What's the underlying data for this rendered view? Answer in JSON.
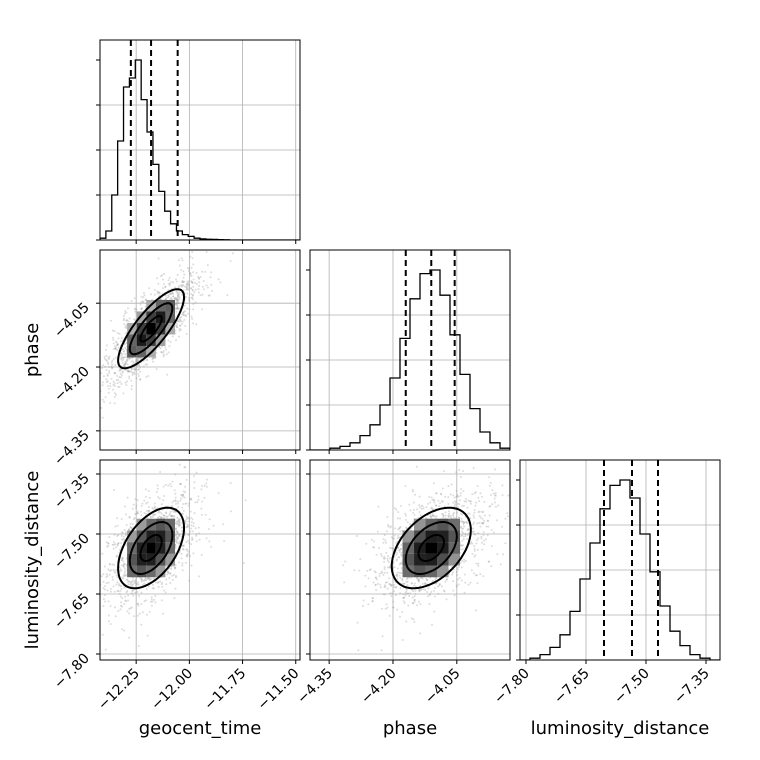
{
  "chart_data": {
    "type": "corner",
    "parameters": [
      {
        "name": "geocent_time",
        "label": "geocent_time",
        "range": [
          -12.42,
          -11.48
        ],
        "ticks": [
          -12.25,
          -12.0,
          -11.75,
          -11.5
        ],
        "tick_labels": [
          "−12.25",
          "−12.00",
          "−11.75",
          "−11.50"
        ],
        "quantiles": [
          -12.275,
          -12.18,
          -12.055
        ],
        "mean": -12.18,
        "sd": 0.1
      },
      {
        "name": "phase",
        "label": "phase",
        "range": [
          -4.395,
          -3.925
        ],
        "ticks": [
          -4.35,
          -4.2,
          -4.05
        ],
        "tick_labels": [
          "−4.35",
          "−4.20",
          "−4.05"
        ],
        "quantiles": [
          -4.17,
          -4.11,
          -4.055
        ],
        "mean": -4.11,
        "sd": 0.06
      },
      {
        "name": "luminosity_distance",
        "label": "luminosity_distance",
        "range": [
          -7.815,
          -7.315
        ],
        "ticks": [
          -7.8,
          -7.65,
          -7.5,
          -7.35
        ],
        "tick_labels": [
          "−7.80",
          "−7.65",
          "−7.50",
          "−7.35"
        ],
        "quantiles": [
          -7.605,
          -7.535,
          -7.47
        ],
        "mean": -7.535,
        "sd": 0.065
      }
    ],
    "histograms": [
      {
        "param": "geocent_time",
        "bins": [
          -12.42,
          -12.393,
          -12.366,
          -12.339,
          -12.312,
          -12.285,
          -12.258,
          -12.231,
          -12.204,
          -12.177,
          -12.15,
          -12.123,
          -12.096,
          -12.069,
          -12.042,
          -12.015,
          -11.988,
          -11.961,
          -11.934,
          -11.907,
          -11.88,
          -11.853,
          -11.826,
          -11.799,
          -11.772,
          -11.745,
          -11.718,
          -11.691,
          -11.664,
          -11.637,
          -11.61,
          -11.583,
          -11.556,
          -11.529,
          -11.502
        ],
        "counts": [
          0.01,
          0.05,
          0.25,
          0.55,
          0.85,
          0.9,
          1.0,
          0.78,
          0.6,
          0.42,
          0.27,
          0.16,
          0.09,
          0.05,
          0.03,
          0.02,
          0.01,
          0.006,
          0.004,
          0.003,
          0.002,
          0.001,
          0.0,
          0.0,
          0.0,
          0.0,
          0.0,
          0.0,
          0.0,
          0.0,
          0.0,
          0.0,
          0.0,
          0.0
        ]
      },
      {
        "param": "phase",
        "counts": [
          0.0,
          0.0,
          0.01,
          0.02,
          0.04,
          0.08,
          0.14,
          0.25,
          0.4,
          0.62,
          0.84,
          0.98,
          1.0,
          0.86,
          0.64,
          0.42,
          0.23,
          0.1,
          0.04,
          0.01
        ]
      },
      {
        "param": "luminosity_distance",
        "counts": [
          0.0,
          0.01,
          0.03,
          0.07,
          0.14,
          0.27,
          0.45,
          0.65,
          0.84,
          0.97,
          1.0,
          0.9,
          0.7,
          0.49,
          0.3,
          0.16,
          0.08,
          0.03,
          0.01,
          0.0
        ]
      }
    ],
    "correlations": {
      "geocent_time|phase": 0.8,
      "geocent_time|luminosity_distance": 0.5,
      "phase|luminosity_distance": 0.45
    },
    "contour_levels_sigma": [
      1,
      2,
      3
    ],
    "grid": true
  }
}
